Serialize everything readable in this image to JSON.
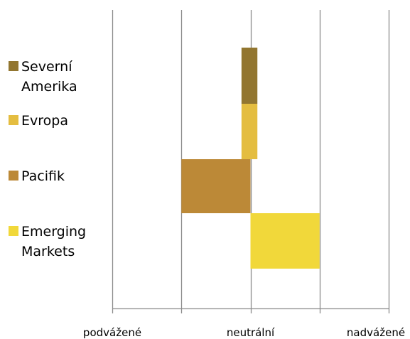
{
  "chart_data": {
    "type": "bar",
    "orientation": "horizontal",
    "stacked": false,
    "categories": [
      "Severní Amerika",
      "Evropa",
      "Pacifik",
      "Emerging Markets"
    ],
    "series": [
      {
        "name": "Severní Amerika",
        "category": "Severní Amerika",
        "start": -0.13,
        "end": 0.1,
        "color": "#927630"
      },
      {
        "name": "Evropa",
        "category": "Evropa",
        "start": -0.13,
        "end": 0.1,
        "color": "#E4BD40"
      },
      {
        "name": "Pacifik",
        "category": "Pacifik",
        "start": -1.0,
        "end": 0.0,
        "color": "#BC8937"
      },
      {
        "name": "Emerging Markets",
        "category": "Emerging Markets",
        "start": 0.0,
        "end": 1.0,
        "color": "#F1D83A"
      }
    ],
    "xlim": [
      -2,
      2
    ],
    "x_ticks": [
      -2,
      -1,
      0,
      1,
      2
    ],
    "x_tick_labels": [
      {
        "value": -2,
        "label": "podvážené"
      },
      {
        "value": 0,
        "label": "neutrální"
      },
      {
        "value": 2,
        "label": "nadvážené"
      }
    ],
    "grid": true,
    "legend": {
      "position": "left",
      "entries": [
        {
          "label": "Severní Amerika",
          "color": "#927630"
        },
        {
          "label": "Evropa",
          "color": "#E4BD40"
        },
        {
          "label": "Pacifik",
          "color": "#BC8937"
        },
        {
          "label": "Emerging Markets",
          "color": "#F1D83A"
        }
      ]
    }
  }
}
